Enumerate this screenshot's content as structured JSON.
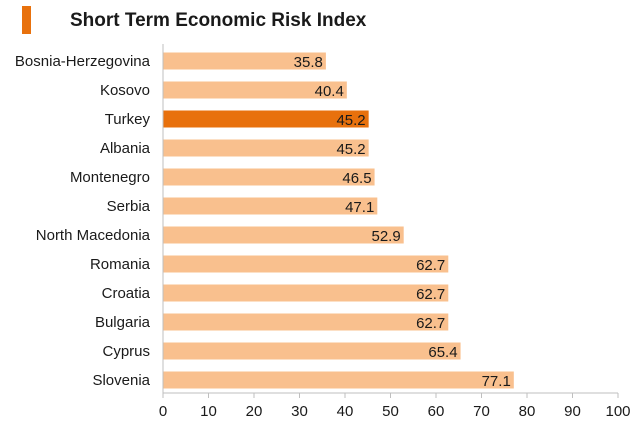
{
  "chart_data": {
    "type": "bar",
    "orientation": "horizontal",
    "title": "Short Term Economic Risk Index",
    "categories": [
      "Bosnia-Herzegovina",
      "Kosovo",
      "Turkey",
      "Albania",
      "Montenegro",
      "Serbia",
      "North Macedonia",
      "Romania",
      "Croatia",
      "Bulgaria",
      "Cyprus",
      "Slovenia"
    ],
    "values": [
      35.8,
      40.4,
      45.2,
      45.2,
      46.5,
      47.1,
      52.9,
      62.7,
      62.7,
      62.7,
      65.4,
      77.1
    ],
    "value_labels": [
      "35.8",
      "40.4",
      "45.2",
      "45.2",
      "46.5",
      "47.1",
      "52.9",
      "62.7",
      "62.7",
      "62.7",
      "65.4",
      "77.1"
    ],
    "highlight": "Turkey",
    "xlabel": "",
    "ylabel": "",
    "xlim": [
      0,
      100
    ],
    "xticks": [
      0,
      10,
      20,
      30,
      40,
      50,
      60,
      70,
      80,
      90,
      100
    ],
    "grid": false,
    "legend": "none"
  },
  "colors": {
    "bar": "#f9c08e",
    "highlight_bar": "#e8710d",
    "title_accent": "#e8710d",
    "axis": "#bfbfbf"
  }
}
